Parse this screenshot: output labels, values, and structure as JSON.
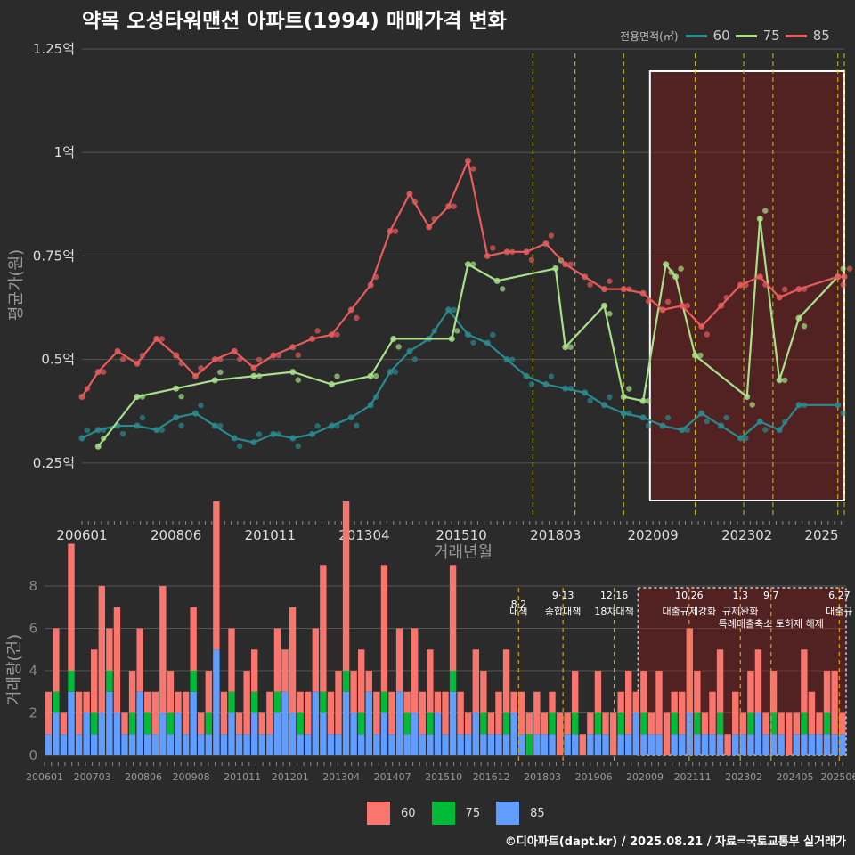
{
  "title": "약목 오성타워맨션 아파트(1994) 매매가격 변화",
  "legend_top": {
    "title": "전용면적(㎡)",
    "items": [
      {
        "label": "60",
        "color": "#2a8a8f"
      },
      {
        "label": "75",
        "color": "#a8e08a"
      },
      {
        "label": "85",
        "color": "#e85c5c"
      }
    ]
  },
  "legend_bottom": {
    "items": [
      {
        "label": "60",
        "color": "#f8766d"
      },
      {
        "label": "75",
        "color": "#00ba38"
      },
      {
        "label": "85",
        "color": "#619cff"
      }
    ]
  },
  "footer": "©디아파트(dapt.kr) / 2025.08.21 / 자료=국토교통부 실거래가",
  "chart_data": [
    {
      "type": "line",
      "title": "약목 오성타워맨션 아파트(1994) 매매가격 변화",
      "xlabel": "거래년월",
      "ylabel": "평균가(원)",
      "ylim": [
        0.125,
        1.25
      ],
      "y_ticks": [
        {
          "value": 0.25,
          "label": "0.25억"
        },
        {
          "value": 0.5,
          "label": "0.5억"
        },
        {
          "value": 0.75,
          "label": "0.75억"
        },
        {
          "value": 1.0,
          "label": "1억"
        },
        {
          "value": 1.25,
          "label": "1.25억"
        }
      ],
      "x_ticks": [
        "200601",
        "200806",
        "201011",
        "201304",
        "201510",
        "201803",
        "202009",
        "202302",
        "2025"
      ],
      "policy_lines": [
        "201708",
        "201809",
        "201912",
        "202110",
        "202301",
        "202310",
        "202506",
        "202508"
      ],
      "highlight": {
        "from": "202007",
        "to": "202508"
      },
      "series": [
        {
          "name": "60",
          "color": "#2a8a8f",
          "x": [
            "200601",
            "200606",
            "200612",
            "200706",
            "200712",
            "200806",
            "200812",
            "200906",
            "200912",
            "201006",
            "201012",
            "201106",
            "201112",
            "201206",
            "201212",
            "201306",
            "201312",
            "201406",
            "201412",
            "201506",
            "201512",
            "201606",
            "201612",
            "201706",
            "201712",
            "201806",
            "201812",
            "201906",
            "201912",
            "202006",
            "202012",
            "202106",
            "202112",
            "202206",
            "202212",
            "202306",
            "202312",
            "202406",
            "202506"
          ],
          "y": [
            0.31,
            0.33,
            0.34,
            0.34,
            0.33,
            0.36,
            0.37,
            0.34,
            0.31,
            0.3,
            0.32,
            0.31,
            0.32,
            0.34,
            0.36,
            0.39,
            0.47,
            0.52,
            0.55,
            0.62,
            0.56,
            0.54,
            0.5,
            0.46,
            0.44,
            0.43,
            0.42,
            0.39,
            0.37,
            0.36,
            0.34,
            0.33,
            0.37,
            0.34,
            0.31,
            0.35,
            0.33,
            0.39,
            0.39
          ]
        },
        {
          "name": "75",
          "color": "#a8e08a",
          "x": [
            "200606",
            "200706",
            "200806",
            "200906",
            "201006",
            "201106",
            "201206",
            "201306",
            "201401",
            "201507",
            "201512",
            "201609",
            "201803",
            "201806",
            "201906",
            "201912",
            "202006",
            "202101",
            "202104",
            "202110",
            "202302",
            "202306",
            "202312",
            "202406",
            "202506"
          ],
          "y": [
            0.29,
            0.41,
            0.43,
            0.45,
            0.46,
            0.47,
            0.44,
            0.46,
            0.55,
            0.55,
            0.73,
            0.69,
            0.72,
            0.53,
            0.63,
            0.41,
            0.4,
            0.73,
            0.7,
            0.51,
            0.41,
            0.84,
            0.45,
            0.6,
            0.7
          ]
        },
        {
          "name": "85",
          "color": "#e85c5c",
          "x": [
            "200601",
            "200606",
            "200612",
            "200706",
            "200712",
            "200806",
            "200812",
            "200906",
            "200912",
            "201006",
            "201012",
            "201106",
            "201112",
            "201206",
            "201212",
            "201306",
            "201312",
            "201406",
            "201412",
            "201506",
            "201512",
            "201606",
            "201612",
            "201706",
            "201712",
            "201806",
            "201812",
            "201906",
            "201912",
            "202006",
            "202012",
            "202106",
            "202112",
            "202206",
            "202212",
            "202306",
            "202312",
            "202406",
            "202506",
            "202508"
          ],
          "y": [
            0.41,
            0.47,
            0.52,
            0.49,
            0.55,
            0.51,
            0.46,
            0.5,
            0.52,
            0.48,
            0.51,
            0.53,
            0.55,
            0.56,
            0.62,
            0.68,
            0.81,
            0.9,
            0.82,
            0.87,
            0.98,
            0.75,
            0.76,
            0.76,
            0.78,
            0.73,
            0.7,
            0.67,
            0.67,
            0.66,
            0.62,
            0.63,
            0.58,
            0.63,
            0.68,
            0.7,
            0.65,
            0.67,
            0.7,
            0.7
          ]
        }
      ]
    },
    {
      "type": "bar",
      "xlabel": "",
      "ylabel": "거래량(건)",
      "ylim": [
        0,
        8
      ],
      "y_ticks": [
        0,
        2,
        4,
        6,
        8
      ],
      "x_ticks": [
        "200601",
        "200703",
        "200806",
        "200908",
        "201011",
        "201201",
        "201304",
        "201407",
        "201510",
        "201612",
        "201803",
        "201906",
        "202009",
        "202111",
        "202302",
        "202405",
        "202506"
      ],
      "policies": [
        {
          "date": "201708",
          "label": "8·2 대책"
        },
        {
          "date": "201809",
          "label": "9·13 종합대책"
        },
        {
          "date": "201912",
          "label": "12·16 18차대책"
        },
        {
          "date": "202110",
          "label": "10.26 대출규제강화"
        },
        {
          "date": "202301",
          "label": "1.3 규제완화"
        },
        {
          "date": "202310",
          "label": "9·7 특례대출축소 토허제 해제"
        },
        {
          "date": "202506",
          "label": "6.27 대출규"
        }
      ],
      "series": [
        {
          "name": "60",
          "color": "#f8766d",
          "values": [
            2,
            3,
            1,
            6,
            2,
            1,
            3,
            6,
            2,
            5,
            1,
            2,
            3,
            1,
            2,
            6,
            2,
            1,
            2,
            3,
            1,
            2,
            7,
            2,
            3,
            1,
            3,
            2,
            1,
            2,
            3,
            2,
            5,
            1,
            2,
            3,
            6,
            2,
            3,
            8,
            2,
            3,
            1,
            2,
            6,
            2,
            3,
            1,
            4,
            2,
            3,
            1,
            2,
            5,
            2,
            1,
            3,
            2,
            1,
            2,
            3,
            1,
            2,
            1,
            2,
            1,
            1,
            2,
            1,
            2,
            1,
            1,
            2,
            1,
            2,
            1,
            3,
            1,
            2,
            1,
            3,
            2,
            1,
            2,
            4,
            2,
            1,
            2,
            3,
            1,
            2,
            1,
            2,
            3,
            1,
            2,
            1,
            2,
            1,
            3,
            2,
            1,
            2,
            3,
            1
          ]
        },
        {
          "name": "75",
          "color": "#00ba38",
          "values": [
            0,
            1,
            0,
            1,
            0,
            0,
            1,
            0,
            1,
            0,
            0,
            1,
            0,
            1,
            0,
            0,
            1,
            0,
            0,
            1,
            0,
            1,
            0,
            0,
            1,
            0,
            0,
            1,
            0,
            0,
            1,
            0,
            0,
            1,
            0,
            0,
            1,
            0,
            0,
            1,
            0,
            1,
            0,
            0,
            1,
            0,
            0,
            1,
            0,
            0,
            1,
            0,
            0,
            1,
            0,
            0,
            0,
            1,
            0,
            0,
            1,
            0,
            0,
            1,
            0,
            0,
            1,
            0,
            0,
            1,
            0,
            0,
            1,
            0,
            0,
            1,
            0,
            0,
            1,
            0,
            0,
            0,
            1,
            0,
            0,
            1,
            0,
            0,
            1,
            0,
            0,
            0,
            1,
            0,
            0,
            1,
            0,
            0,
            0,
            1,
            0,
            0,
            1,
            0,
            0
          ]
        },
        {
          "name": "85",
          "color": "#619cff",
          "values": [
            1,
            2,
            1,
            3,
            1,
            2,
            1,
            2,
            3,
            2,
            1,
            1,
            3,
            1,
            1,
            2,
            1,
            2,
            1,
            3,
            1,
            1,
            5,
            1,
            2,
            1,
            1,
            2,
            1,
            1,
            2,
            3,
            2,
            1,
            1,
            3,
            2,
            1,
            1,
            3,
            2,
            1,
            3,
            1,
            2,
            1,
            3,
            1,
            2,
            1,
            1,
            2,
            1,
            3,
            1,
            1,
            2,
            1,
            1,
            1,
            1,
            2,
            1,
            0,
            1,
            1,
            1,
            0,
            1,
            1,
            0,
            1,
            1,
            1,
            0,
            1,
            1,
            2,
            1,
            1,
            1,
            0,
            1,
            1,
            2,
            1,
            1,
            1,
            1,
            0,
            1,
            1,
            1,
            2,
            1,
            1,
            1,
            0,
            1,
            1,
            1,
            1,
            1,
            1,
            1
          ]
        }
      ]
    }
  ]
}
